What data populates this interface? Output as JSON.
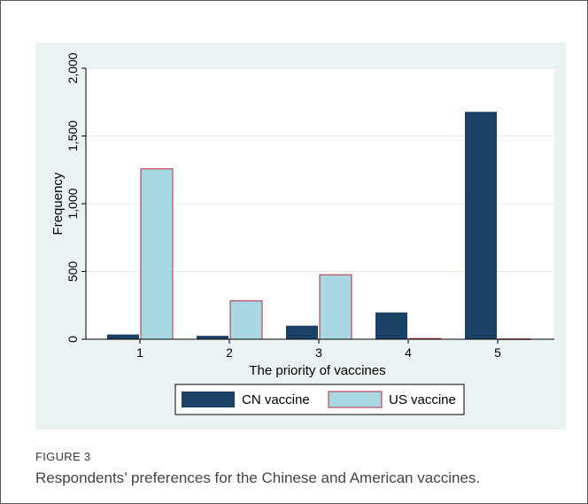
{
  "figure": {
    "label": "FIGURE 3",
    "caption": "Respondents’ preferences for the Chinese and American vaccines."
  },
  "chart_data": {
    "type": "bar",
    "xlabel": "The priority of vaccines",
    "ylabel": "Frequency",
    "categories": [
      "1",
      "2",
      "3",
      "4",
      "5"
    ],
    "ylim": [
      0,
      2000
    ],
    "yticks": [
      0,
      500,
      1000,
      1500,
      2000
    ],
    "ytick_labels": [
      "0",
      "500",
      "1,000",
      "1,500",
      "2,000"
    ],
    "grid": true,
    "legend_position": "bottom",
    "series": [
      {
        "name": "CN vaccine",
        "values": [
          35,
          25,
          100,
          198,
          1678
        ],
        "color": "#1b4065"
      },
      {
        "name": "US vaccine",
        "values": [
          1257,
          283,
          476,
          5,
          2
        ],
        "color": "#a9d8e4",
        "edge": "#b22a3a"
      }
    ]
  }
}
